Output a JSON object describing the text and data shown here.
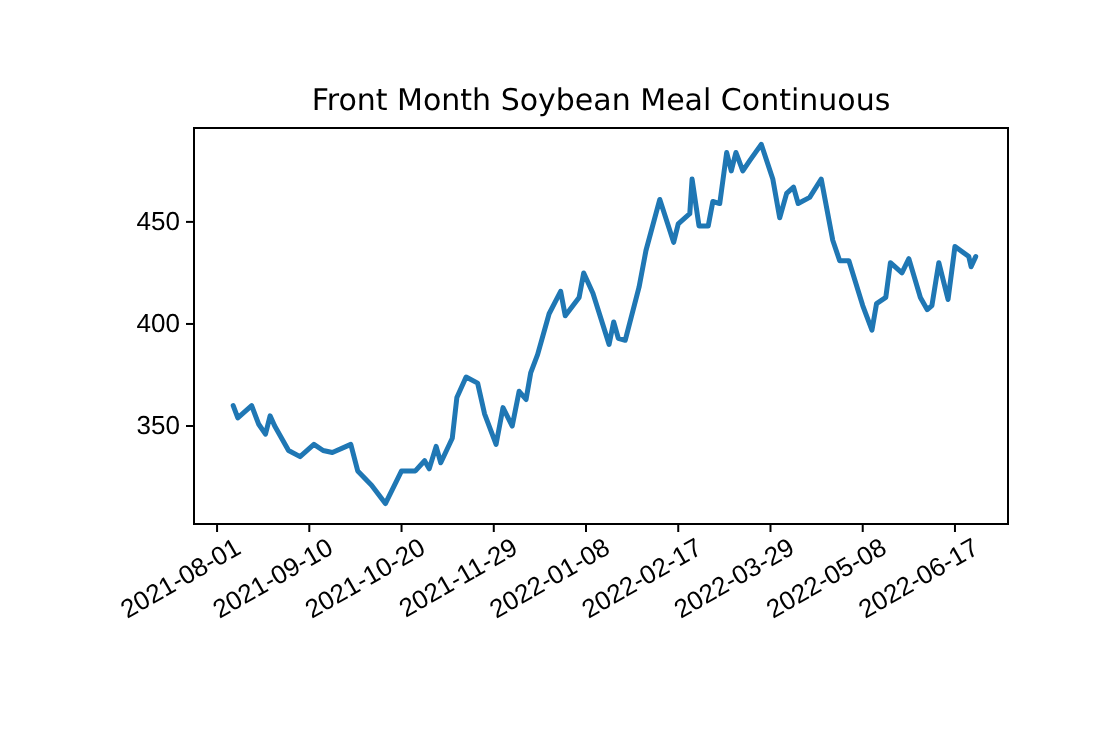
{
  "chart_data": {
    "type": "line",
    "title": "Front Month Soybean Meal Continuous",
    "x": [
      "2021-08-08",
      "2021-08-10",
      "2021-08-16",
      "2021-08-19",
      "2021-08-22",
      "2021-08-24",
      "2021-08-26",
      "2021-09-01",
      "2021-09-06",
      "2021-09-12",
      "2021-09-16",
      "2021-09-20",
      "2021-09-28",
      "2021-10-01",
      "2021-10-07",
      "2021-10-13",
      "2021-10-20",
      "2021-10-26",
      "2021-10-30",
      "2021-11-01",
      "2021-11-04",
      "2021-11-06",
      "2021-11-11",
      "2021-11-13",
      "2021-11-17",
      "2021-11-22",
      "2021-11-25",
      "2021-11-30",
      "2021-12-03",
      "2021-12-07",
      "2021-12-10",
      "2021-12-13",
      "2021-12-15",
      "2021-12-18",
      "2021-12-23",
      "2021-12-28",
      "2021-12-30",
      "2022-01-05",
      "2022-01-07",
      "2022-01-11",
      "2022-01-18",
      "2022-01-20",
      "2022-01-22",
      "2022-01-25",
      "2022-01-31",
      "2022-02-03",
      "2022-02-09",
      "2022-02-11",
      "2022-02-15",
      "2022-02-17",
      "2022-02-22",
      "2022-02-23",
      "2022-02-26",
      "2022-03-02",
      "2022-03-04",
      "2022-03-07",
      "2022-03-10",
      "2022-03-12",
      "2022-03-14",
      "2022-03-17",
      "2022-03-20",
      "2022-03-25",
      "2022-03-30",
      "2022-04-02",
      "2022-04-05",
      "2022-04-08",
      "2022-04-10",
      "2022-04-15",
      "2022-04-20",
      "2022-04-25",
      "2022-04-28",
      "2022-05-02",
      "2022-05-08",
      "2022-05-12",
      "2022-05-14",
      "2022-05-18",
      "2022-05-20",
      "2022-05-25",
      "2022-05-28",
      "2022-06-02",
      "2022-06-05",
      "2022-06-07",
      "2022-06-10",
      "2022-06-14",
      "2022-06-17",
      "2022-06-23",
      "2022-06-24",
      "2022-06-26"
    ],
    "series": [
      {
        "color": "#1f77b4",
        "values": [
          360,
          354,
          360,
          351,
          346,
          355,
          350,
          338,
          335,
          341,
          338,
          337,
          341,
          328,
          321,
          312,
          328,
          328,
          333,
          329,
          340,
          332,
          344,
          364,
          374,
          371,
          356,
          341,
          359,
          350,
          367,
          363,
          376,
          385,
          405,
          416,
          404,
          413,
          425,
          415,
          390,
          401,
          393,
          392,
          418,
          436,
          461,
          454,
          440,
          449,
          454,
          471,
          448,
          448,
          460,
          459,
          484,
          475,
          484,
          475,
          480,
          488,
          471,
          452,
          464,
          467,
          459,
          462,
          471,
          441,
          431,
          431,
          409,
          397,
          410,
          413,
          430,
          425,
          432,
          413,
          407,
          409,
          430,
          412,
          438,
          433,
          428,
          433
        ]
      }
    ],
    "xlim": [
      "2021-07-22",
      "2022-07-10"
    ],
    "ylim": [
      302,
      496
    ],
    "xticks": [
      "2021-08-01",
      "2021-09-10",
      "2021-10-20",
      "2021-11-29",
      "2022-01-08",
      "2022-02-17",
      "2022-03-29",
      "2022-05-08",
      "2022-06-17"
    ],
    "yticks": [
      350,
      400,
      450
    ],
    "grid": false,
    "marker": "none",
    "line_style": "solid"
  }
}
